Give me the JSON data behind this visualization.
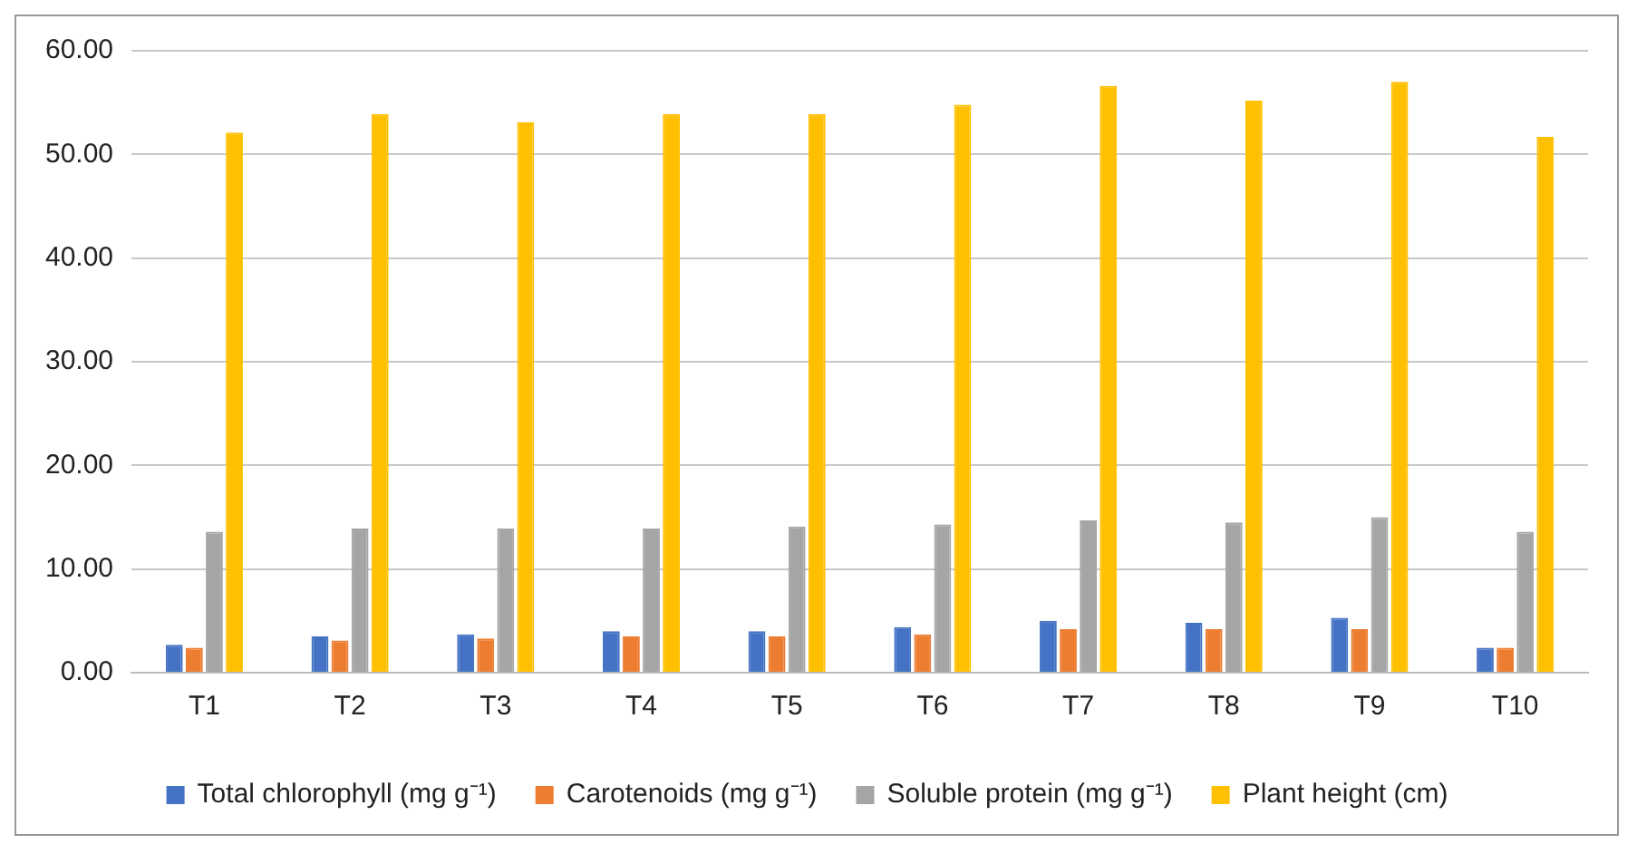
{
  "chart_data": {
    "type": "bar",
    "categories": [
      "T1",
      "T2",
      "T3",
      "T4",
      "T5",
      "T6",
      "T7",
      "T8",
      "T9",
      "T10"
    ],
    "series": [
      {
        "name": "Total chlorophyll (mg g⁻¹)",
        "color": "#4472c4",
        "values": [
          2.7,
          3.5,
          3.7,
          4.0,
          4.0,
          4.4,
          5.0,
          4.8,
          5.3,
          2.4
        ]
      },
      {
        "name": "Carotenoids (mg g⁻¹)",
        "color": "#ed7d31",
        "values": [
          2.4,
          3.1,
          3.3,
          3.5,
          3.5,
          3.7,
          4.2,
          4.2,
          4.2,
          2.4
        ]
      },
      {
        "name": "Soluble protein (mg g⁻¹)",
        "color": "#a5a5a5",
        "values": [
          13.6,
          13.9,
          13.9,
          13.9,
          14.1,
          14.3,
          14.7,
          14.5,
          15.0,
          13.6
        ]
      },
      {
        "name": "Plant height (cm)",
        "color": "#ffc000",
        "values": [
          52.1,
          53.9,
          53.1,
          53.9,
          53.9,
          54.8,
          56.6,
          55.2,
          57.0,
          51.7
        ]
      }
    ],
    "ylim": [
      0,
      60
    ],
    "yticks": [
      {
        "value": 0,
        "label": "0.00"
      },
      {
        "value": 10,
        "label": "10.00"
      },
      {
        "value": 20,
        "label": "20.00"
      },
      {
        "value": 30,
        "label": "30.00"
      },
      {
        "value": 40,
        "label": "40.00"
      },
      {
        "value": 50,
        "label": "50.00"
      },
      {
        "value": 60,
        "label": "60.00"
      }
    ],
    "grid": "y",
    "legend": "bottom"
  }
}
